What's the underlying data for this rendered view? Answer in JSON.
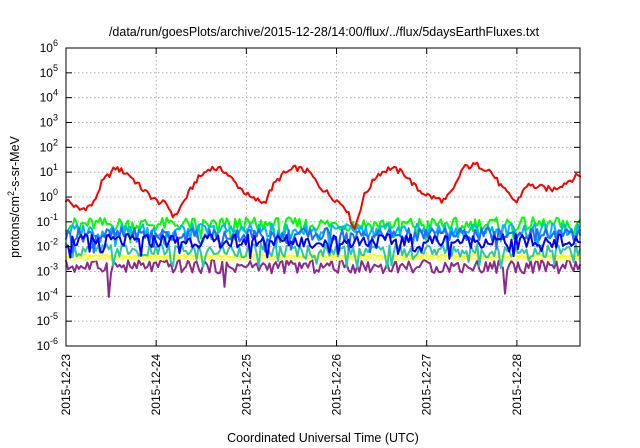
{
  "chart_data": {
    "type": "line",
    "title": "/data/run/goesPlots/archive/2015-12-28/14:00/flux/../flux/5daysEarthFluxes.txt",
    "xlabel": "Coordinated Universal Time (UTC)",
    "ylabel": {
      "prefix": "protons/cm",
      "sup": "2",
      "suffix": "-s-sr-MeV"
    },
    "x_ticks": [
      "2015-12-23",
      "2015-12-24",
      "2015-12-25",
      "2015-12-26",
      "2015-12-27",
      "2015-12-28"
    ],
    "xlim_days": [
      0,
      5.7
    ],
    "y_scale": "log",
    "ylim": [
      1e-06,
      1000000.0
    ],
    "y_ticks": [
      {
        "base": "10",
        "exp": "-6",
        "value": 1e-06
      },
      {
        "base": "10",
        "exp": "-5",
        "value": 1e-05
      },
      {
        "base": "10",
        "exp": "-4",
        "value": 0.0001
      },
      {
        "base": "10",
        "exp": "-3",
        "value": 0.001
      },
      {
        "base": "10",
        "exp": "-2",
        "value": 0.01
      },
      {
        "base": "10",
        "exp": "-1",
        "value": 0.1
      },
      {
        "base": "10",
        "exp": "0",
        "value": 1
      },
      {
        "base": "10",
        "exp": "1",
        "value": 10
      },
      {
        "base": "10",
        "exp": "2",
        "value": 100
      },
      {
        "base": "10",
        "exp": "3",
        "value": 1000
      },
      {
        "base": "10",
        "exp": "4",
        "value": 10000
      },
      {
        "base": "10",
        "exp": "5",
        "value": 100000
      },
      {
        "base": "10",
        "exp": "6",
        "value": 1000000
      }
    ],
    "grid": true,
    "legend": "none",
    "series": [
      {
        "color": "#ff0000",
        "x": [
          0,
          0.15,
          0.3,
          0.4,
          0.55,
          0.7,
          0.85,
          1.0,
          1.12,
          1.2,
          1.3,
          1.45,
          1.6,
          1.75,
          1.9,
          2.05,
          2.2,
          2.3,
          2.4,
          2.55,
          2.7,
          2.8,
          2.95,
          3.1,
          3.2,
          3.3,
          3.45,
          3.6,
          3.75,
          3.9,
          4.05,
          4.2,
          4.3,
          4.4,
          4.55,
          4.7,
          4.85,
          5.0,
          5.1,
          5.25,
          5.4,
          5.55,
          5.7
        ],
        "y": [
          0.8,
          0.3,
          0.5,
          4,
          15,
          8,
          2,
          0.7,
          0.5,
          0.15,
          0.6,
          5,
          15,
          12,
          3,
          0.9,
          0.6,
          3,
          8,
          15,
          10,
          3,
          1.0,
          0.4,
          0.05,
          1,
          8,
          15,
          9,
          2,
          1,
          0.7,
          2,
          15,
          20,
          12,
          2,
          0.6,
          3,
          2.5,
          2,
          4,
          8
        ]
      },
      {
        "color": "#00ff00",
        "x": [
          0,
          5.7
        ],
        "y": [
          0.08,
          0.08
        ]
      },
      {
        "color": "#00b4ff",
        "x": [
          0,
          5.7
        ],
        "y": [
          0.045,
          0.045
        ]
      },
      {
        "color": "#1e6eff",
        "x": [
          0,
          5.7
        ],
        "y": [
          0.03,
          0.03
        ]
      },
      {
        "color": "#0000ff",
        "x": [
          0,
          5.7
        ],
        "y": [
          0.017,
          0.017
        ]
      },
      {
        "color": "#2ec8a0",
        "x": [
          0,
          5.7
        ],
        "y": [
          0.007,
          0.007
        ]
      },
      {
        "color": "#ffff00",
        "x": [
          0,
          5.7
        ],
        "y": [
          0.0042,
          0.0042
        ]
      },
      {
        "color": "#ffff66",
        "x": [
          0,
          5.7
        ],
        "y": [
          0.0032,
          0.0032
        ]
      },
      {
        "color": "#8b2a8b",
        "x": [
          0,
          5.7
        ],
        "y": [
          0.0016,
          0.0016
        ]
      }
    ]
  }
}
